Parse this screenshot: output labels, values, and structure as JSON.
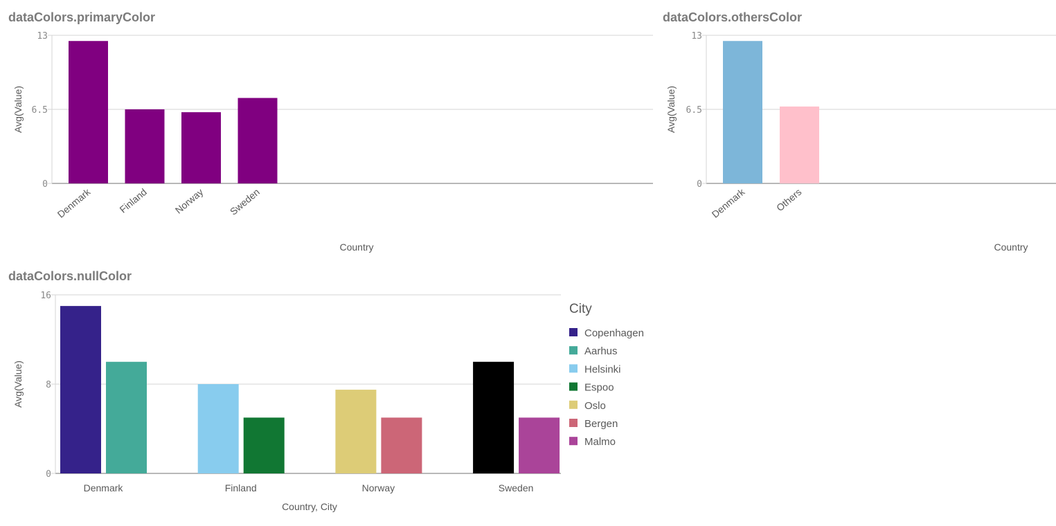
{
  "chart_data": [
    {
      "type": "bar",
      "title": "dataColors.primaryColor",
      "xlabel": "Country",
      "ylabel": "Avg(Value)",
      "ylim": [
        0,
        13
      ],
      "yticks": [
        "0",
        "6.5",
        "13"
      ],
      "categories": [
        "Denmark",
        "Finland",
        "Norway",
        "Sweden"
      ],
      "values": [
        12.5,
        6.5,
        6.25,
        7.5
      ],
      "colors": [
        "#800080",
        "#800080",
        "#800080",
        "#800080"
      ],
      "grid": true
    },
    {
      "type": "bar",
      "title": "dataColors.othersColor",
      "xlabel": "Country",
      "ylabel": "Avg(Value)",
      "ylim": [
        0,
        13
      ],
      "yticks": [
        "0",
        "6.5",
        "13"
      ],
      "categories": [
        "Denmark",
        "Others"
      ],
      "values": [
        12.5,
        6.75
      ],
      "colors": [
        "#7db6d9",
        "#ffc0cb"
      ],
      "grid": true
    },
    {
      "type": "bar",
      "title": "dataColors.nullColor",
      "xlabel": "Country, City",
      "ylabel": "Avg(Value)",
      "ylim": [
        0,
        16
      ],
      "yticks": [
        "0",
        "8",
        "16"
      ],
      "categories": [
        "Denmark",
        "Finland",
        "Norway",
        "Sweden"
      ],
      "groups": [
        {
          "country": "Denmark",
          "bars": [
            {
              "city": "Copenhagen",
              "value": 15,
              "color": "#35228a"
            },
            {
              "city": "Aarhus",
              "value": 10,
              "color": "#44aa99"
            }
          ]
        },
        {
          "country": "Finland",
          "bars": [
            {
              "city": "Helsinki",
              "value": 8,
              "color": "#88ccee"
            },
            {
              "city": "Espoo",
              "value": 5,
              "color": "#117733"
            }
          ]
        },
        {
          "country": "Norway",
          "bars": [
            {
              "city": "Oslo",
              "value": 7.5,
              "color": "#ddcc77"
            },
            {
              "city": "Bergen",
              "value": 5,
              "color": "#cc6677"
            }
          ]
        },
        {
          "country": "Sweden",
          "bars": [
            {
              "city": null,
              "value": 10,
              "color": "#000000"
            },
            {
              "city": "Malmo",
              "value": 5,
              "color": "#aa4499"
            }
          ]
        }
      ],
      "legend": {
        "title": "City",
        "position": "right",
        "items": [
          {
            "label": "Copenhagen",
            "color": "#35228a"
          },
          {
            "label": "Aarhus",
            "color": "#44aa99"
          },
          {
            "label": "Helsinki",
            "color": "#88ccee"
          },
          {
            "label": "Espoo",
            "color": "#117733"
          },
          {
            "label": "Oslo",
            "color": "#ddcc77"
          },
          {
            "label": "Bergen",
            "color": "#cc6677"
          },
          {
            "label": "Malmo",
            "color": "#aa4499"
          }
        ]
      },
      "grid": true
    }
  ]
}
